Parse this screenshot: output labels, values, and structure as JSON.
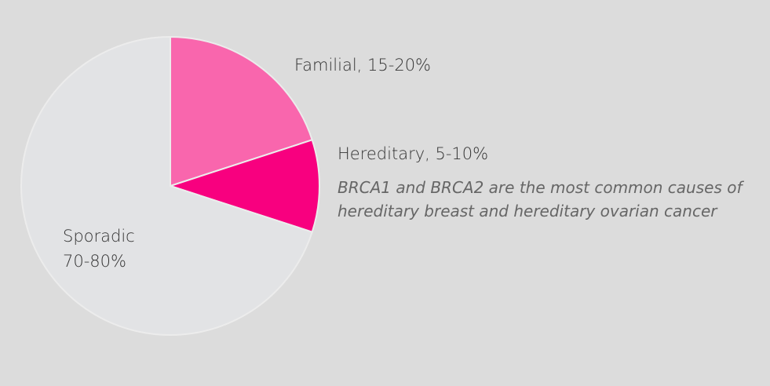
{
  "chart_data": {
    "type": "pie",
    "slices": [
      {
        "label": "Familial, 15-20%",
        "value": 20,
        "color": "#f966ad"
      },
      {
        "label": "Hereditary, 5-10%",
        "value": 10,
        "color": "#f8007f"
      },
      {
        "label_line1": "Sporadic",
        "label_line2": "70-80%",
        "value": 70,
        "color": "#e2e3e5"
      }
    ],
    "annotation_line1": "BRCA1 and BRCA2 are the most common causes of",
    "annotation_line2": "hereditary breast and hereditary ovarian cancer",
    "background": "#dcdcdc"
  }
}
